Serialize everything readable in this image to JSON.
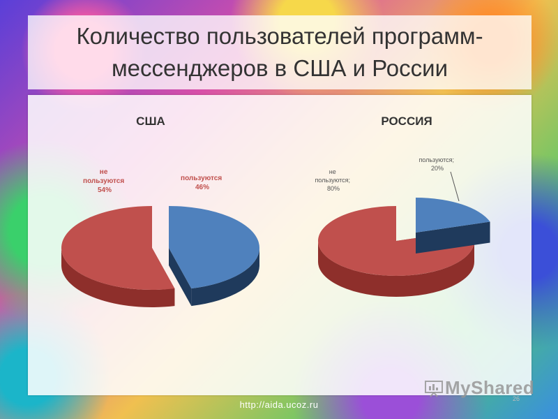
{
  "slide": {
    "title": "Количество пользователей программ-мессенджеров в США и России",
    "footer_url": "http://aida.ucoz.ru",
    "slide_number": "26",
    "watermark": "MyShared"
  },
  "colors": {
    "red": "#c0504d",
    "red_dark": "#8e2f2b",
    "blue": "#4f81bd",
    "blue_dark": "#1f3a5c"
  },
  "chart_data": [
    {
      "type": "pie",
      "title": "США",
      "labels": [
        "не пользуются",
        "пользуются"
      ],
      "values": [
        54,
        46
      ],
      "value_labels": [
        "54%",
        "46%"
      ],
      "colors": [
        "#c0504d",
        "#4f81bd"
      ]
    },
    {
      "type": "pie",
      "title": "РОССИЯ",
      "labels": [
        "не пользуются;",
        "пользуются;"
      ],
      "values": [
        80,
        20
      ],
      "value_labels": [
        "80%",
        "20%"
      ],
      "colors": [
        "#c0504d",
        "#4f81bd"
      ]
    }
  ]
}
